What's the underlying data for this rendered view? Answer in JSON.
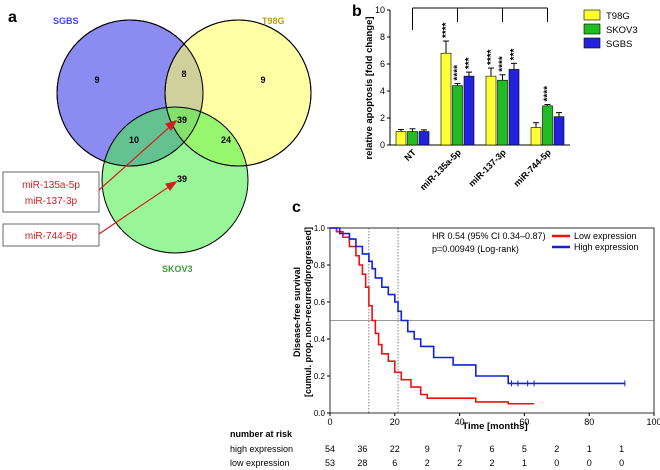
{
  "panels": {
    "a": "a",
    "b": "b",
    "c": "c"
  },
  "venn": {
    "sets": [
      {
        "name": "SGBS",
        "color": "#6666ff",
        "label_color": "#4444ee"
      },
      {
        "name": "T98G",
        "color": "#ffff66",
        "label_color": "#b3a300"
      },
      {
        "name": "SKOV3",
        "color": "#66ee66",
        "label_color": "#3aa13a"
      }
    ],
    "counts": {
      "sgbs_only": "9",
      "t98g_only": "9",
      "sgbs_t98g": "8",
      "all_three": "39",
      "sgbs_skov3": "10",
      "t98g_skov3": "24",
      "skov3_only": "39"
    },
    "callouts": [
      {
        "lines": [
          "miR-135a-5p",
          "miR-137-3p"
        ],
        "points_to": "all_three"
      },
      {
        "lines": [
          "miR-744-5p"
        ],
        "points_to": "skov3_only"
      }
    ],
    "callout_color": "#d11f1f"
  },
  "chart_data": [
    {
      "type": "bar",
      "panel": "b",
      "ylabel": "relative apoptosis [fold change]",
      "ylim": [
        0,
        10
      ],
      "yticks": [
        "0",
        "2",
        "4",
        "6",
        "8",
        "10"
      ],
      "categories": [
        "NT",
        "miR-135a-5p",
        "miR-137-3p",
        "miR-744-5p"
      ],
      "series": [
        {
          "name": "T98G",
          "color": "#ffff33",
          "values": [
            1.0,
            6.8,
            5.1,
            1.3
          ],
          "errors": [
            0.15,
            0.9,
            0.6,
            0.35
          ],
          "significance": [
            "",
            "****",
            "****",
            ""
          ]
        },
        {
          "name": "SKOV3",
          "color": "#22bb22",
          "values": [
            1.0,
            4.4,
            4.8,
            2.9
          ],
          "errors": [
            0.2,
            0.15,
            0.4,
            0.1
          ],
          "significance": [
            "",
            "****",
            "****",
            "****"
          ]
        },
        {
          "name": "SGBS",
          "color": "#2222dd",
          "values": [
            1.0,
            5.1,
            5.6,
            2.1
          ],
          "errors": [
            0.12,
            0.3,
            0.45,
            0.3
          ],
          "significance": [
            "",
            "***",
            "***",
            ""
          ]
        }
      ]
    },
    {
      "type": "line",
      "panel": "c",
      "title": "",
      "xlabel": "Time [months]",
      "ylabel": "Disease-free survival",
      "ylabel2": "[cumul. prop. non-recurred/progressed]",
      "xlim": [
        0,
        100
      ],
      "ylim": [
        0,
        1.0
      ],
      "xticks": [
        "0",
        "20",
        "40",
        "60",
        "80",
        "100"
      ],
      "yticks": [
        "0.0",
        "0.2",
        "0.4",
        "0.6",
        "0.8",
        "1.0"
      ],
      "annotation_lines": [
        "HR 0.54 (95% CI 0.34–0.87)",
        "p=0.00949 (Log-rank)"
      ],
      "reference_lines": {
        "vertical": [
          12,
          21
        ],
        "horizontal": [
          0.5
        ]
      },
      "series": [
        {
          "name": "Low expression",
          "color": "#ee1111",
          "x": [
            0,
            2,
            4,
            6,
            8,
            9,
            10,
            11,
            12,
            13,
            14,
            15,
            16,
            18,
            20,
            22,
            25,
            28,
            30,
            45,
            55,
            63
          ],
          "y": [
            1.0,
            0.98,
            0.95,
            0.9,
            0.85,
            0.8,
            0.75,
            0.68,
            0.58,
            0.5,
            0.43,
            0.37,
            0.32,
            0.28,
            0.22,
            0.18,
            0.14,
            0.1,
            0.08,
            0.06,
            0.05,
            0.05
          ],
          "censored_x": []
        },
        {
          "name": "High expression",
          "color": "#1122dd",
          "x": [
            0,
            3,
            6,
            8,
            10,
            12,
            13,
            14,
            16,
            18,
            20,
            21,
            22,
            24,
            26,
            28,
            32,
            38,
            45,
            55,
            75,
            91
          ],
          "y": [
            1.0,
            0.97,
            0.94,
            0.9,
            0.86,
            0.82,
            0.78,
            0.73,
            0.68,
            0.64,
            0.6,
            0.55,
            0.5,
            0.44,
            0.4,
            0.36,
            0.3,
            0.26,
            0.2,
            0.16,
            0.16,
            0.16
          ],
          "censored_x": [
            56,
            58,
            61,
            63,
            91
          ]
        }
      ]
    }
  ],
  "risk_table": {
    "title": "number at risk",
    "time_points": [
      0,
      10,
      20,
      30,
      40,
      50,
      60,
      70,
      80,
      90
    ],
    "rows": [
      {
        "label": "high expression",
        "values": [
          "54",
          "36",
          "22",
          "9",
          "7",
          "6",
          "5",
          "2",
          "1",
          "1"
        ]
      },
      {
        "label": "low expression",
        "values": [
          "53",
          "28",
          "6",
          "2",
          "2",
          "2",
          "1",
          "0",
          "0",
          "0"
        ]
      }
    ]
  }
}
